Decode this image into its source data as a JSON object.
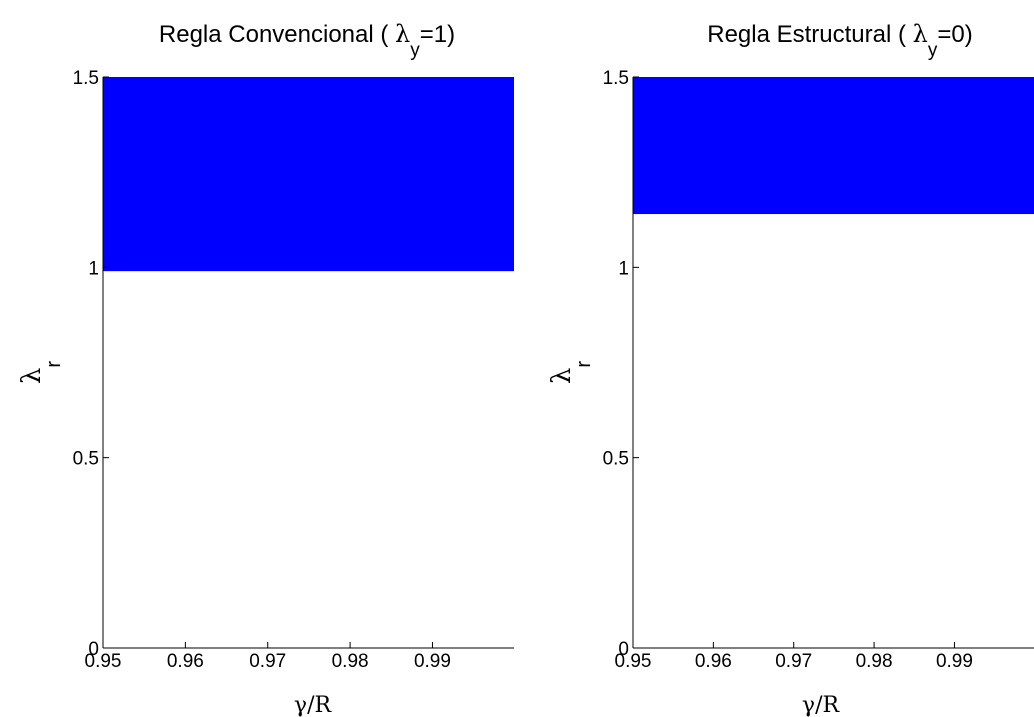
{
  "chart_data": [
    {
      "type": "area",
      "title": {
        "prefix": "Regla Convencional (",
        "symbol": "λ",
        "subscript": "y",
        "suffix": "=1)"
      },
      "xlabel": {
        "symbol": "γ",
        "text": "/R"
      },
      "ylabel": {
        "symbol": "λ",
        "subscript": "r"
      },
      "xlim": [
        0.95,
        0.9999
      ],
      "ylim": [
        0,
        1.5
      ],
      "xticks": [
        0.95,
        0.96,
        0.97,
        0.98,
        0.99
      ],
      "xtick_labels": [
        "0.95",
        "0.96",
        "0.97",
        "0.98",
        "0.99"
      ],
      "yticks": [
        0,
        0.5,
        1,
        1.5
      ],
      "ytick_labels": [
        "0",
        "0.5",
        "1",
        "1.5"
      ],
      "grid": false,
      "region": {
        "x": [
          0.95,
          0.9999
        ],
        "y": [
          0.99,
          1.5
        ],
        "color": "#0000ff"
      }
    },
    {
      "type": "area",
      "title": {
        "prefix": "Regla Estructural (",
        "symbol": "λ",
        "subscript": "y",
        "suffix": "=0)"
      },
      "xlabel": {
        "symbol": "γ",
        "text": "/R"
      },
      "ylabel": {
        "symbol": "λ",
        "subscript": "r"
      },
      "xlim": [
        0.95,
        0.9999
      ],
      "ylim": [
        0,
        1.5
      ],
      "xticks": [
        0.95,
        0.96,
        0.97,
        0.98,
        0.99
      ],
      "xtick_labels": [
        "0.95",
        "0.96",
        "0.97",
        "0.98",
        "0.99"
      ],
      "yticks": [
        0,
        0.5,
        1,
        1.5
      ],
      "ytick_labels": [
        "0",
        "0.5",
        "1",
        "1.5"
      ],
      "grid": false,
      "region": {
        "x": [
          0.95,
          0.9999
        ],
        "y": [
          1.14,
          1.5
        ],
        "color": "#0000ff"
      }
    }
  ]
}
